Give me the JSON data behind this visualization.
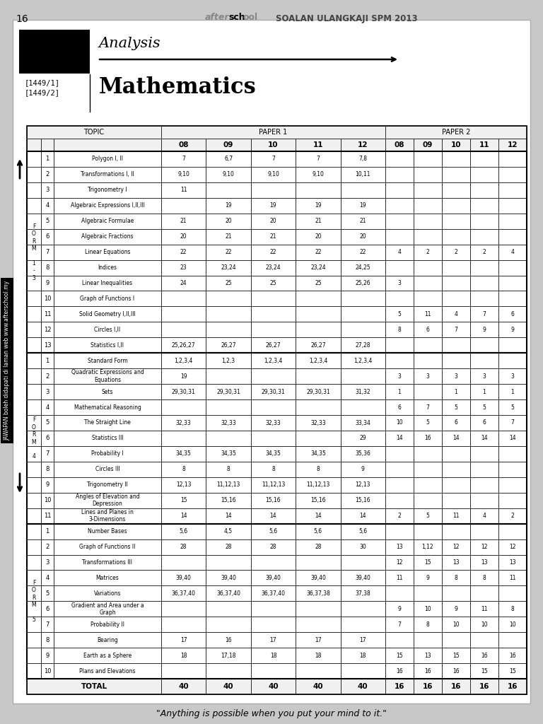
{
  "page_num": "16",
  "header_text": "SOALAN ULANGKAJI SPM 2013",
  "title_italic": "Analysis",
  "title_bold": "Mathematics",
  "bg_color": "#c8c8c8",
  "rows": [
    {
      "num": "1",
      "topic": "Polygon I, II",
      "p1": [
        "7",
        "6,7",
        "7",
        "7",
        "7,8"
      ],
      "p2": [
        "",
        "",
        "",
        "",
        ""
      ]
    },
    {
      "num": "2",
      "topic": "Transformations I, II",
      "p1": [
        "9,10",
        "9,10",
        "9,10",
        "9,10",
        "10,11"
      ],
      "p2": [
        "",
        "",
        "",
        "",
        ""
      ]
    },
    {
      "num": "3",
      "topic": "Trigonometry I",
      "p1": [
        "11",
        "",
        "",
        "",
        ""
      ],
      "p2": [
        "",
        "",
        "",
        "",
        ""
      ]
    },
    {
      "num": "4",
      "topic": "Algebraic Expressions I,II,III",
      "p1": [
        "",
        "19",
        "19",
        "19",
        "19"
      ],
      "p2": [
        "",
        "",
        "",
        "",
        ""
      ]
    },
    {
      "num": "5",
      "topic": "Algebraic Formulae",
      "p1": [
        "21",
        "20",
        "20",
        "21",
        "21"
      ],
      "p2": [
        "",
        "",
        "",
        "",
        ""
      ]
    },
    {
      "num": "6",
      "topic": "Algebraic Fractions",
      "p1": [
        "20",
        "21",
        "21",
        "20",
        "20"
      ],
      "p2": [
        "",
        "",
        "",
        "",
        ""
      ]
    },
    {
      "num": "7",
      "topic": "Linear Equations",
      "p1": [
        "22",
        "22",
        "22",
        "22",
        "22"
      ],
      "p2": [
        "4",
        "2",
        "2",
        "2",
        "4"
      ]
    },
    {
      "num": "8",
      "topic": "Indices",
      "p1": [
        "23",
        "23,24",
        "23,24",
        "23,24",
        "24,25"
      ],
      "p2": [
        "",
        "",
        "",
        "",
        ""
      ]
    },
    {
      "num": "9",
      "topic": "Linear Inequalities",
      "p1": [
        "24",
        "25",
        "25",
        "25",
        "25,26"
      ],
      "p2": [
        "3",
        "",
        "",
        "",
        ""
      ]
    },
    {
      "num": "10",
      "topic": "Graph of Functions I",
      "p1": [
        "",
        "",
        "",
        "",
        ""
      ],
      "p2": [
        "",
        "",
        "",
        "",
        ""
      ]
    },
    {
      "num": "11",
      "topic": "Solid Geometry I,II,III",
      "p1": [
        "",
        "",
        "",
        "",
        ""
      ],
      "p2": [
        "5",
        "11",
        "4",
        "7",
        "6"
      ]
    },
    {
      "num": "12",
      "topic": "Circles I,II",
      "p1": [
        "",
        "",
        "",
        "",
        ""
      ],
      "p2": [
        "8",
        "6",
        "7",
        "9",
        "9"
      ]
    },
    {
      "num": "13",
      "topic": "Statistics I,II",
      "p1": [
        "25,26,27",
        "26,27",
        "26,27",
        "26,27",
        "27,28"
      ],
      "p2": [
        "",
        "",
        "",
        "",
        ""
      ]
    },
    {
      "num": "1",
      "topic": "Standard Form",
      "p1": [
        "1,2,3,4",
        "1,2,3",
        "1,2,3,4",
        "1,2,3,4",
        "1,2,3,4"
      ],
      "p2": [
        "",
        "",
        "",
        "",
        ""
      ]
    },
    {
      "num": "2",
      "topic": "Quadratic Expressions and\nEquations",
      "p1": [
        "19",
        "",
        "",
        "",
        ""
      ],
      "p2": [
        "3",
        "3",
        "3",
        "3",
        "3"
      ]
    },
    {
      "num": "3",
      "topic": "Sets",
      "p1": [
        "29,30,31",
        "29,30,31",
        "29,30,31",
        "29,30,31",
        "31,32"
      ],
      "p2": [
        "1",
        "",
        "1",
        "1",
        "1"
      ]
    },
    {
      "num": "4",
      "topic": "Mathematical Reasoning",
      "p1": [
        "",
        "",
        "",
        "",
        ""
      ],
      "p2": [
        "6",
        "7",
        "5",
        "5",
        "5"
      ]
    },
    {
      "num": "5",
      "topic": "The Straight Line",
      "p1": [
        "32,33",
        "32,33",
        "32,33",
        "32,33",
        "33,34"
      ],
      "p2": [
        "10",
        "5",
        "6",
        "6",
        "7"
      ]
    },
    {
      "num": "6",
      "topic": "Statistics III",
      "p1": [
        "",
        "",
        "",
        "",
        "29"
      ],
      "p2": [
        "14",
        "16",
        "14",
        "14",
        "14"
      ]
    },
    {
      "num": "7",
      "topic": "Probability I",
      "p1": [
        "34,35",
        "34,35",
        "34,35",
        "34,35",
        "35,36"
      ],
      "p2": [
        "",
        "",
        "",
        "",
        ""
      ]
    },
    {
      "num": "8",
      "topic": "Circles III",
      "p1": [
        "8",
        "8",
        "8",
        "8",
        "9"
      ],
      "p2": [
        "",
        "",
        "",
        "",
        ""
      ]
    },
    {
      "num": "9",
      "topic": "Trigonometry II",
      "p1": [
        "12,13",
        "11,12,13",
        "11,12,13",
        "11,12,13",
        "12,13"
      ],
      "p2": [
        "",
        "",
        "",
        "",
        ""
      ]
    },
    {
      "num": "10",
      "topic": "Angles of Elevation and\nDepression",
      "p1": [
        "15",
        "15,16",
        "15,16",
        "15,16",
        "15,16"
      ],
      "p2": [
        "",
        "",
        "",
        "",
        ""
      ]
    },
    {
      "num": "11",
      "topic": "Lines and Planes in\n3-Dimensions",
      "p1": [
        "14",
        "14",
        "14",
        "14",
        "14"
      ],
      "p2": [
        "2",
        "5",
        "11",
        "4",
        "2"
      ]
    },
    {
      "num": "1",
      "topic": "Number Bases",
      "p1": [
        "5,6",
        "4,5",
        "5,6",
        "5,6",
        "5,6"
      ],
      "p2": [
        "",
        "",
        "",
        "",
        ""
      ]
    },
    {
      "num": "2",
      "topic": "Graph of Functions II",
      "p1": [
        "28",
        "28",
        "28",
        "28",
        "30"
      ],
      "p2": [
        "13",
        "1,12",
        "12",
        "12",
        "12"
      ]
    },
    {
      "num": "3",
      "topic": "Transformations III",
      "p1": [
        "",
        "",
        "",
        "",
        ""
      ],
      "p2": [
        "12",
        "15",
        "13",
        "13",
        "13"
      ]
    },
    {
      "num": "4",
      "topic": "Matrices",
      "p1": [
        "39,40",
        "39,40",
        "39,40",
        "39,40",
        "39,40"
      ],
      "p2": [
        "11",
        "9",
        "8",
        "8",
        "11"
      ]
    },
    {
      "num": "5",
      "topic": "Variations",
      "p1": [
        "36,37,40",
        "36,37,40",
        "36,37,40",
        "36,37,38",
        "37,38"
      ],
      "p2": [
        "",
        "",
        "",
        "",
        ""
      ]
    },
    {
      "num": "6",
      "topic": "Gradient and Area under a\nGraph",
      "p1": [
        "",
        "",
        "",
        "",
        ""
      ],
      "p2": [
        "9",
        "10",
        "9",
        "11",
        "8"
      ]
    },
    {
      "num": "7",
      "topic": "Probability II",
      "p1": [
        "",
        "",
        "",
        "",
        ""
      ],
      "p2": [
        "7",
        "8",
        "10",
        "10",
        "10"
      ]
    },
    {
      "num": "8",
      "topic": "Bearing",
      "p1": [
        "17",
        "16",
        "17",
        "17",
        "17"
      ],
      "p2": [
        "",
        "",
        "",
        "",
        ""
      ]
    },
    {
      "num": "9",
      "topic": "Earth as a Sphere",
      "p1": [
        "18",
        "17,18",
        "18",
        "18",
        "18"
      ],
      "p2": [
        "15",
        "13",
        "15",
        "16",
        "16"
      ]
    },
    {
      "num": "10",
      "topic": "Plans and Elevations",
      "p1": [
        "",
        "",
        "",
        "",
        ""
      ],
      "p2": [
        "16",
        "16",
        "16",
        "15",
        "15"
      ]
    }
  ],
  "total_p1": [
    "40",
    "40",
    "40",
    "40",
    "40"
  ],
  "total_p2": [
    "16",
    "16",
    "16",
    "16",
    "16"
  ],
  "section_ranges": [
    [
      0,
      12
    ],
    [
      13,
      23
    ],
    [
      24,
      33
    ]
  ],
  "section_labels": [
    "F\nO\nR\nM\n \n1\n-\n3",
    "F\nO\nR\nM\n \n4",
    "F\nO\nR\nM\n \n5"
  ],
  "footer": "\"Anything is possible when you put your mind to it.\""
}
